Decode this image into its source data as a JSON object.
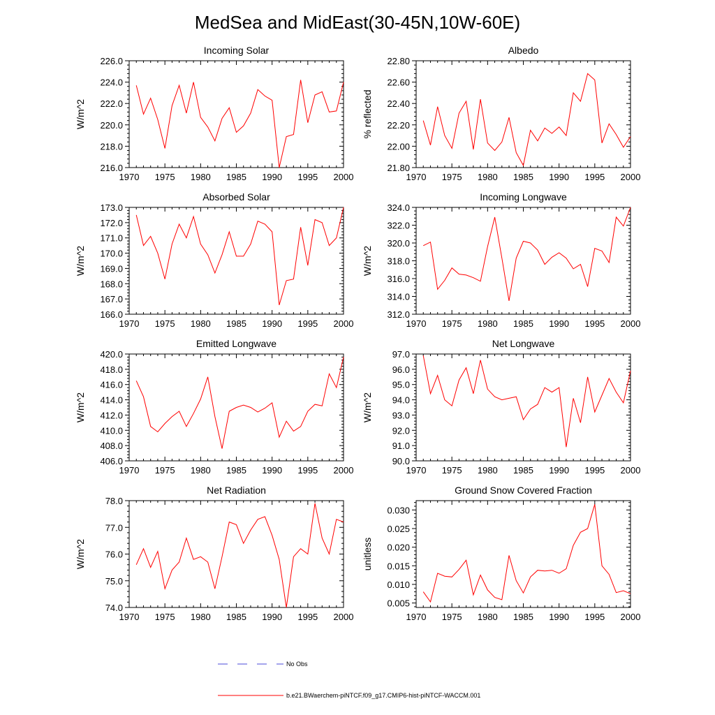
{
  "page_title": "MedSea and MidEast(30-45N,10W-60E)",
  "legend": {
    "obs_label": "No Obs",
    "model_label": "b.e21.BWaerchem-piNTCF.f09_g17.CMIP6-hist-piNTCF-WACCM.001",
    "obs_color": "#4a4ad8",
    "model_color": "#ff0000"
  },
  "chart_data": [
    {
      "type": "line",
      "title": "Incoming Solar",
      "ylabel": "W/m^2",
      "xlim": [
        1970,
        2000
      ],
      "ylim": [
        216,
        226
      ],
      "yticks": [
        "216.0",
        "218.0",
        "220.0",
        "222.0",
        "224.0",
        "226.0"
      ],
      "xticks": [
        "1970",
        "1975",
        "1980",
        "1985",
        "1990",
        "1995",
        "2000"
      ],
      "x": [
        1971,
        1972,
        1973,
        1974,
        1975,
        1976,
        1977,
        1978,
        1979,
        1980,
        1981,
        1982,
        1983,
        1984,
        1985,
        1986,
        1987,
        1988,
        1989,
        1990,
        1991,
        1992,
        1993,
        1994,
        1995,
        1996,
        1997,
        1998,
        1999,
        2000
      ],
      "series": [
        {
          "color": "#ff0000",
          "values": [
            223.7,
            221.0,
            222.5,
            220.5,
            217.8,
            221.8,
            223.7,
            221.1,
            224.0,
            220.7,
            219.8,
            218.5,
            220.6,
            221.6,
            219.3,
            219.9,
            221.1,
            223.3,
            222.7,
            222.3,
            216.0,
            218.9,
            219.1,
            224.2,
            220.2,
            222.8,
            223.1,
            221.2,
            221.3,
            224.0
          ]
        }
      ]
    },
    {
      "type": "line",
      "title": "Albedo",
      "ylabel": "% reflected",
      "xlim": [
        1970,
        2000
      ],
      "ylim": [
        21.8,
        22.8
      ],
      "yticks": [
        "21.80",
        "22.00",
        "22.20",
        "22.40",
        "22.60",
        "22.80"
      ],
      "xticks": [
        "1970",
        "1975",
        "1980",
        "1985",
        "1990",
        "1995",
        "2000"
      ],
      "x": [
        1971,
        1972,
        1973,
        1974,
        1975,
        1976,
        1977,
        1978,
        1979,
        1980,
        1981,
        1982,
        1983,
        1984,
        1985,
        1986,
        1987,
        1988,
        1989,
        1990,
        1991,
        1992,
        1993,
        1994,
        1995,
        1996,
        1997,
        1998,
        1999,
        2000
      ],
      "series": [
        {
          "color": "#ff0000",
          "values": [
            22.24,
            22.01,
            22.37,
            22.1,
            21.98,
            22.31,
            22.42,
            21.97,
            22.44,
            22.03,
            21.96,
            22.04,
            22.27,
            21.94,
            21.82,
            22.15,
            22.05,
            22.17,
            22.12,
            22.18,
            22.1,
            22.5,
            22.42,
            22.68,
            22.62,
            22.03,
            22.21,
            22.11,
            21.99,
            22.09
          ]
        }
      ]
    },
    {
      "type": "line",
      "title": "Absorbed Solar",
      "ylabel": "W/m^2",
      "xlim": [
        1970,
        2000
      ],
      "ylim": [
        166,
        173
      ],
      "yticks": [
        "166.0",
        "167.0",
        "168.0",
        "169.0",
        "170.0",
        "171.0",
        "172.0",
        "173.0"
      ],
      "xticks": [
        "1970",
        "1975",
        "1980",
        "1985",
        "1990",
        "1995",
        "2000"
      ],
      "x": [
        1971,
        1972,
        1973,
        1974,
        1975,
        1976,
        1977,
        1978,
        1979,
        1980,
        1981,
        1982,
        1983,
        1984,
        1985,
        1986,
        1987,
        1988,
        1989,
        1990,
        1991,
        1992,
        1993,
        1994,
        1995,
        1996,
        1997,
        1998,
        1999,
        2000
      ],
      "series": [
        {
          "color": "#ff0000",
          "values": [
            172.5,
            170.5,
            171.1,
            170.0,
            168.3,
            170.6,
            171.9,
            171.0,
            172.4,
            170.6,
            169.9,
            168.7,
            169.9,
            171.4,
            169.8,
            169.8,
            170.6,
            172.1,
            171.9,
            171.4,
            166.6,
            168.2,
            168.3,
            171.7,
            169.2,
            172.2,
            172.0,
            170.5,
            171.0,
            173.0
          ]
        }
      ]
    },
    {
      "type": "line",
      "title": "Incoming Longwave",
      "ylabel": "W/m^2",
      "xlim": [
        1970,
        2000
      ],
      "ylim": [
        312,
        324
      ],
      "yticks": [
        "312.0",
        "314.0",
        "316.0",
        "318.0",
        "320.0",
        "322.0",
        "324.0"
      ],
      "xticks": [
        "1970",
        "1975",
        "1980",
        "1985",
        "1990",
        "1995",
        "2000"
      ],
      "x": [
        1971,
        1972,
        1973,
        1974,
        1975,
        1976,
        1977,
        1978,
        1979,
        1980,
        1981,
        1982,
        1983,
        1984,
        1985,
        1986,
        1987,
        1988,
        1989,
        1990,
        1991,
        1992,
        1993,
        1994,
        1995,
        1996,
        1997,
        1998,
        1999,
        2000
      ],
      "series": [
        {
          "color": "#ff0000",
          "values": [
            319.7,
            320.1,
            314.8,
            315.8,
            317.2,
            316.5,
            316.4,
            316.1,
            315.7,
            319.6,
            322.9,
            318.3,
            313.5,
            318.3,
            320.2,
            320.0,
            319.2,
            317.6,
            318.4,
            318.9,
            318.3,
            317.1,
            317.6,
            315.1,
            319.4,
            319.1,
            317.8,
            322.9,
            321.9,
            324.0
          ]
        }
      ]
    },
    {
      "type": "line",
      "title": "Emitted Longwave",
      "ylabel": "W/m^2",
      "xlim": [
        1970,
        2000
      ],
      "ylim": [
        406,
        420
      ],
      "yticks": [
        "406.0",
        "408.0",
        "410.0",
        "412.0",
        "414.0",
        "416.0",
        "418.0",
        "420.0"
      ],
      "xticks": [
        "1970",
        "1975",
        "1980",
        "1985",
        "1990",
        "1995",
        "2000"
      ],
      "x": [
        1971,
        1972,
        1973,
        1974,
        1975,
        1976,
        1977,
        1978,
        1979,
        1980,
        1981,
        1982,
        1983,
        1984,
        1985,
        1986,
        1987,
        1988,
        1989,
        1990,
        1991,
        1992,
        1993,
        1994,
        1995,
        1996,
        1997,
        1998,
        1999,
        2000
      ],
      "series": [
        {
          "color": "#ff0000",
          "values": [
            416.5,
            414.4,
            410.5,
            409.8,
            410.9,
            411.8,
            412.5,
            410.5,
            412.2,
            414.1,
            417.0,
            411.8,
            407.6,
            412.5,
            413.0,
            413.3,
            413.0,
            412.4,
            412.9,
            413.6,
            409.1,
            411.2,
            409.9,
            410.5,
            412.5,
            413.4,
            413.2,
            417.4,
            415.6,
            419.6
          ]
        }
      ]
    },
    {
      "type": "line",
      "title": "Net Longwave",
      "ylabel": "W/m^2",
      "xlim": [
        1970,
        2000
      ],
      "ylim": [
        90,
        97
      ],
      "yticks": [
        "90.0",
        "91.0",
        "92.0",
        "93.0",
        "94.0",
        "95.0",
        "96.0",
        "97.0"
      ],
      "xticks": [
        "1970",
        "1975",
        "1980",
        "1985",
        "1990",
        "1995",
        "2000"
      ],
      "x": [
        1971,
        1972,
        1973,
        1974,
        1975,
        1976,
        1977,
        1978,
        1979,
        1980,
        1981,
        1982,
        1983,
        1984,
        1985,
        1986,
        1987,
        1988,
        1989,
        1990,
        1991,
        1992,
        1993,
        1994,
        1995,
        1996,
        1997,
        1998,
        1999,
        2000
      ],
      "series": [
        {
          "color": "#ff0000",
          "values": [
            96.9,
            94.4,
            95.6,
            94.0,
            93.6,
            95.3,
            96.1,
            94.4,
            96.6,
            94.7,
            94.2,
            94.0,
            94.1,
            94.2,
            92.7,
            93.4,
            93.7,
            94.8,
            94.5,
            94.8,
            90.9,
            94.1,
            92.5,
            95.5,
            93.2,
            94.3,
            95.4,
            94.5,
            93.8,
            95.9
          ]
        }
      ]
    },
    {
      "type": "line",
      "title": "Net Radiation",
      "ylabel": "W/m^2",
      "xlim": [
        1970,
        2000
      ],
      "ylim": [
        74,
        78
      ],
      "yticks": [
        "74.0",
        "75.0",
        "76.0",
        "77.0",
        "78.0"
      ],
      "xticks": [
        "1970",
        "1975",
        "1980",
        "1985",
        "1990",
        "1995",
        "2000"
      ],
      "x": [
        1971,
        1972,
        1973,
        1974,
        1975,
        1976,
        1977,
        1978,
        1979,
        1980,
        1981,
        1982,
        1983,
        1984,
        1985,
        1986,
        1987,
        1988,
        1989,
        1990,
        1991,
        1992,
        1993,
        1994,
        1995,
        1996,
        1997,
        1998,
        1999,
        2000
      ],
      "series": [
        {
          "color": "#ff0000",
          "values": [
            75.6,
            76.2,
            75.5,
            76.1,
            74.7,
            75.4,
            75.7,
            76.6,
            75.8,
            75.9,
            75.7,
            74.7,
            75.9,
            77.2,
            77.1,
            76.4,
            76.9,
            77.3,
            77.4,
            76.7,
            75.8,
            74.0,
            75.9,
            76.2,
            76.0,
            77.9,
            76.6,
            76.0,
            77.3,
            77.2
          ]
        }
      ]
    },
    {
      "type": "line",
      "title": "Ground Snow Covered Fraction",
      "ylabel": "unitless",
      "xlim": [
        1970,
        2000
      ],
      "ylim": [
        0.0038,
        0.0325
      ],
      "yticks": [
        "0.005",
        "0.010",
        "0.015",
        "0.020",
        "0.025",
        "0.030"
      ],
      "xticks": [
        "1970",
        "1975",
        "1980",
        "1985",
        "1990",
        "1995",
        "2000"
      ],
      "x": [
        1971,
        1972,
        1973,
        1974,
        1975,
        1976,
        1977,
        1978,
        1979,
        1980,
        1981,
        1982,
        1983,
        1984,
        1985,
        1986,
        1987,
        1988,
        1989,
        1990,
        1991,
        1992,
        1993,
        1994,
        1995,
        1996,
        1997,
        1998,
        1999,
        2000
      ],
      "series": [
        {
          "color": "#ff0000",
          "values": [
            0.008,
            0.0053,
            0.013,
            0.0122,
            0.012,
            0.014,
            0.0165,
            0.0072,
            0.0125,
            0.0085,
            0.0065,
            0.0059,
            0.0178,
            0.011,
            0.0077,
            0.012,
            0.0138,
            0.0136,
            0.0138,
            0.013,
            0.0142,
            0.0205,
            0.024,
            0.025,
            0.0315,
            0.015,
            0.0127,
            0.0078,
            0.0083,
            0.0075
          ]
        }
      ]
    }
  ]
}
